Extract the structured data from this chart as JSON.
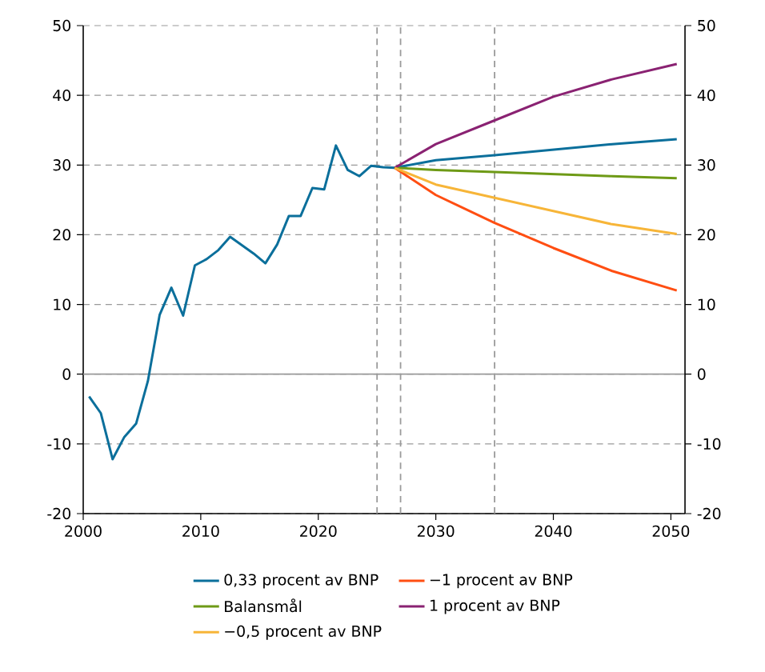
{
  "chart_data": {
    "type": "line",
    "xlim": [
      2000,
      2051.2
    ],
    "xticks": [
      2000,
      2010,
      2020,
      2030,
      2040,
      2050
    ],
    "ylim": [
      -20,
      50
    ],
    "yticks": [
      -20,
      -10,
      0,
      10,
      20,
      30,
      40,
      50
    ],
    "y2lim": [
      -20,
      50
    ],
    "y2ticks": [
      -20,
      -10,
      0,
      10,
      20,
      30,
      40,
      50
    ],
    "grid": "y",
    "legend": "bottom",
    "marker": "none",
    "line_style": "solid",
    "ref_lines": [
      {
        "axis": "y",
        "value": 0,
        "color": "#9a9a9a",
        "line_style": "solid"
      },
      {
        "axis": "x",
        "value": 2025,
        "color": "#9a9a9a",
        "line_style": "dashed"
      },
      {
        "axis": "x",
        "value": 2027,
        "color": "#9a9a9a",
        "line_style": "dashed"
      },
      {
        "axis": "x",
        "value": 2035,
        "color": "#9a9a9a",
        "line_style": "dashed"
      }
    ],
    "series": [
      {
        "name": "0,33 procent av BNP",
        "color": "#0b6f9b",
        "x": [
          2000.5,
          2001.5,
          2002.5,
          2003.5,
          2004.5,
          2005.5,
          2006.5,
          2007.5,
          2008.5,
          2009.5,
          2010.5,
          2011.5,
          2012.5,
          2013.5,
          2014.5,
          2015.5,
          2016.5,
          2017.5,
          2018.5,
          2019.5,
          2020.5,
          2021.5,
          2022.5,
          2023.5,
          2024.5,
          2025.5,
          2026.5,
          2030,
          2035,
          2040,
          2045,
          2050.5
        ],
        "values": [
          -3.2,
          -5.6,
          -12.2,
          -9.0,
          -7.1,
          -1.0,
          8.5,
          12.4,
          8.4,
          15.6,
          16.5,
          17.8,
          19.7,
          18.5,
          17.3,
          15.9,
          18.6,
          22.7,
          22.7,
          26.7,
          26.5,
          32.8,
          29.3,
          28.4,
          29.9,
          29.7,
          29.6,
          30.7,
          31.4,
          32.2,
          33.0,
          33.7
        ]
      },
      {
        "name": "−1 procent av BNP",
        "color": "#ff4e12",
        "x": [
          2026.5,
          2030,
          2035,
          2040,
          2045,
          2050.5
        ],
        "values": [
          29.6,
          25.7,
          21.7,
          18.1,
          14.8,
          12.0
        ]
      },
      {
        "name": "Balansmål",
        "color": "#6e9a16",
        "x": [
          2026.5,
          2030,
          2035,
          2040,
          2045,
          2050.5
        ],
        "values": [
          29.6,
          29.3,
          29.0,
          28.7,
          28.4,
          28.1
        ]
      },
      {
        "name": "1 procent av BNP",
        "color": "#8a2272",
        "x": [
          2026.5,
          2030,
          2035,
          2040,
          2045,
          2050.5
        ],
        "values": [
          29.6,
          33.0,
          36.4,
          39.8,
          42.3,
          44.5
        ]
      },
      {
        "name": "−0,5 procent av BNP",
        "color": "#f7b538",
        "x": [
          2026.5,
          2030,
          2035,
          2040,
          2045,
          2050.5
        ],
        "values": [
          29.6,
          27.2,
          25.3,
          23.4,
          21.5,
          20.1
        ]
      }
    ]
  }
}
